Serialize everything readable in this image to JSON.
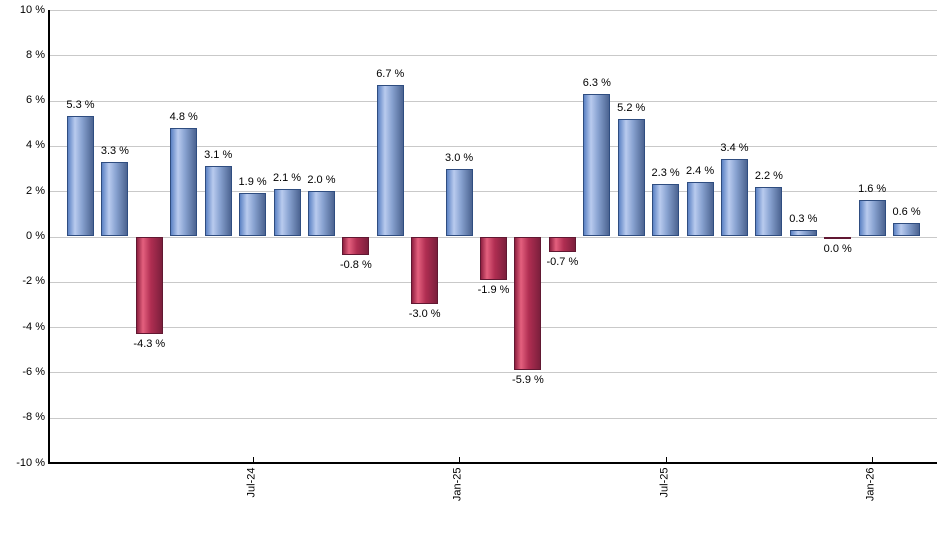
{
  "chart_data": {
    "type": "bar",
    "title": "",
    "xlabel": "",
    "ylabel": "",
    "values": [
      5.3,
      3.3,
      -4.3,
      4.8,
      3.1,
      1.9,
      2.1,
      2.0,
      -0.8,
      6.7,
      -3.0,
      3.0,
      -1.9,
      -5.9,
      -0.7,
      6.3,
      5.2,
      2.3,
      2.4,
      3.4,
      2.2,
      0.3,
      0.0,
      1.6,
      0.6
    ],
    "value_labels": [
      "5.3 %",
      "3.3 %",
      "-4.3 %",
      "4.8 %",
      "3.1 %",
      "1.9 %",
      "2.1 %",
      "2.0 %",
      "-0.8 %",
      "6.7 %",
      "-3.0 %",
      "3.0 %",
      "-1.9 %",
      "-5.9 %",
      "-0.7 %",
      "6.3 %",
      "5.2 %",
      "2.3 %",
      "2.4 %",
      "3.4 %",
      "2.2 %",
      "0.3 %",
      "0.0 %",
      "1.6 %",
      "0.6 %"
    ],
    "y_axis": {
      "tick_labels": [
        "10 %",
        "8 %",
        "6 %",
        "4 %",
        "2 %",
        "0 %",
        "-2 %",
        "-4 %",
        "-6 %",
        "-8 %",
        "-10 %"
      ],
      "max": 10,
      "min": -10,
      "step": 2
    },
    "x_axis": {
      "tick_labels": [
        "Jul-24",
        "Jan-25",
        "Jul-25",
        "Jan-26"
      ],
      "tick_bar_indices": [
        5,
        11,
        17,
        23
      ]
    },
    "ylim": [
      -10,
      10
    ],
    "grid": true,
    "legend": false,
    "colors": {
      "positive_bar_highlight": "#b9cbee",
      "positive_bar_dark": "#4c6491",
      "positive_bar_edge": "#2f4d80",
      "negative_bar_highlight": "#e4607e",
      "negative_bar_dark": "#7c1f3c",
      "negative_bar_edge": "#611832",
      "gridline": "#c9c9c9",
      "axis": "#000000",
      "background": "#ffffff"
    }
  }
}
